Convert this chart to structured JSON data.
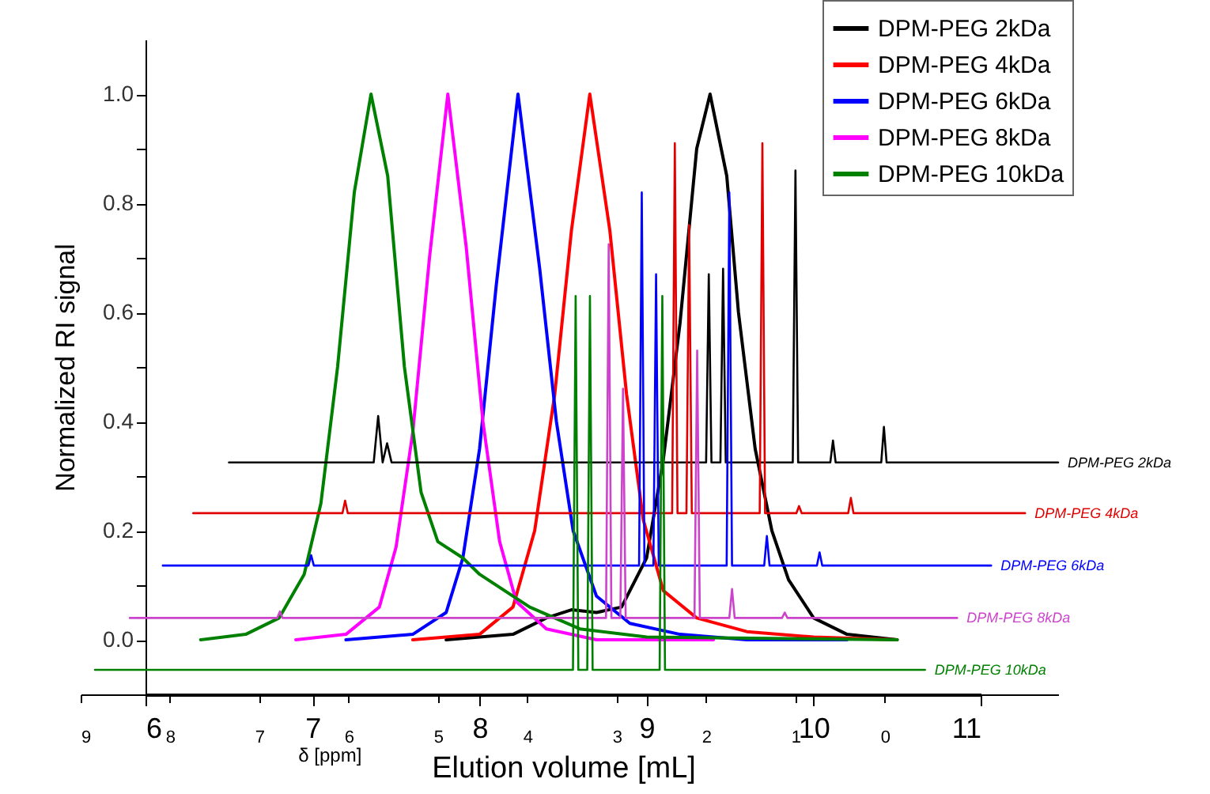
{
  "chart_data": {
    "type": "line",
    "xlabel": "Elution volume [mL]",
    "ylabel": "Normalized RI signal",
    "x2label": "δ [ppm]",
    "xlim": [
      6,
      11
    ],
    "xticks": [
      6,
      7,
      8,
      9,
      10,
      11
    ],
    "x2lim": [
      9,
      -1.94
    ],
    "x2ticks": [
      9,
      8,
      7,
      6,
      5,
      4,
      3,
      2,
      1,
      0
    ],
    "ylim": [
      -0.1,
      1.1
    ],
    "yticks": [
      {
        "value": 0,
        "label": "0.0"
      },
      {
        "value": 0.1,
        "label": null
      },
      {
        "value": 0.2,
        "label": "0.2"
      },
      {
        "value": 0.3,
        "label": null
      },
      {
        "value": 0.4,
        "label": "0.4"
      },
      {
        "value": 0.5,
        "label": null
      },
      {
        "value": 0.6,
        "label": "0.6"
      },
      {
        "value": 0.7,
        "label": null
      },
      {
        "value": 0.8,
        "label": "0.8"
      },
      {
        "value": 0.9,
        "label": null
      },
      {
        "value": 1,
        "label": "1.0"
      }
    ],
    "grid": false,
    "legend": "top right",
    "series": [
      {
        "name": "DPM-PEG 2kDa",
        "color": "#000000",
        "x": [
          7.8,
          8.2,
          8.4,
          8.55,
          8.7,
          8.85,
          9.0,
          9.1,
          9.2,
          9.3,
          9.38,
          9.48,
          9.55,
          9.65,
          9.75,
          9.85,
          10.0,
          10.2,
          10.5
        ],
        "values": [
          0,
          0.01,
          0.04,
          0.055,
          0.05,
          0.06,
          0.15,
          0.33,
          0.58,
          0.9,
          1.0,
          0.85,
          0.6,
          0.35,
          0.2,
          0.11,
          0.04,
          0.01,
          0
        ]
      },
      {
        "name": "DPM-PEG 4kDa",
        "color": "#ff0000",
        "x": [
          7.6,
          8.0,
          8.2,
          8.33,
          8.45,
          8.55,
          8.66,
          8.78,
          8.88,
          8.98,
          9.1,
          9.3,
          9.6,
          10.0,
          10.5
        ],
        "values": [
          0,
          0.01,
          0.06,
          0.2,
          0.45,
          0.75,
          1.0,
          0.75,
          0.45,
          0.22,
          0.09,
          0.04,
          0.015,
          0.005,
          0
        ]
      },
      {
        "name": "DPM-PEG 6kDa",
        "color": "#0000ff",
        "x": [
          7.2,
          7.6,
          7.8,
          7.9,
          8.0,
          8.1,
          8.23,
          8.36,
          8.46,
          8.56,
          8.7,
          8.9,
          9.2,
          9.6,
          10.2
        ],
        "values": [
          0,
          0.01,
          0.05,
          0.15,
          0.35,
          0.65,
          1.0,
          0.68,
          0.4,
          0.2,
          0.08,
          0.03,
          0.01,
          0,
          0
        ]
      },
      {
        "name": "DPM-PEG 8kDa",
        "color": "#ff00ff",
        "x": [
          6.9,
          7.2,
          7.4,
          7.5,
          7.6,
          7.7,
          7.81,
          7.92,
          8.02,
          8.12,
          8.22,
          8.4,
          8.7,
          9.4
        ],
        "values": [
          0,
          0.01,
          0.06,
          0.17,
          0.38,
          0.7,
          1.0,
          0.72,
          0.4,
          0.18,
          0.07,
          0.02,
          0,
          0
        ]
      },
      {
        "name": "DPM-PEG 10kDa",
        "color": "#008000",
        "x": [
          6.33,
          6.6,
          6.8,
          6.95,
          7.05,
          7.15,
          7.25,
          7.35,
          7.45,
          7.55,
          7.65,
          7.75,
          7.9,
          8.0,
          8.3,
          8.6,
          9.0,
          10.5
        ],
        "values": [
          0,
          0.01,
          0.04,
          0.12,
          0.25,
          0.5,
          0.82,
          1.0,
          0.85,
          0.5,
          0.27,
          0.18,
          0.15,
          0.12,
          0.06,
          0.02,
          0.005,
          0
        ]
      },
      {
        "name": "DPM-PEG 2kDa",
        "color": "#000000",
        "axis": "x2",
        "x": [
          7.34,
          5.72,
          5.67,
          5.62,
          5.57,
          5.52,
          2.0,
          1.97,
          1.94,
          1.84,
          1.81,
          1.78,
          1.03,
          1.0,
          0.97,
          0.61,
          0.58,
          0.55,
          0.04,
          0.01,
          -0.02,
          -1.94
        ],
        "values": [
          0.325,
          0.325,
          0.41,
          0.325,
          0.36,
          0.325,
          0.325,
          0.67,
          0.325,
          0.325,
          0.68,
          0.325,
          0.325,
          0.86,
          0.325,
          0.325,
          0.365,
          0.325,
          0.325,
          0.39,
          0.325,
          0.325
        ]
      },
      {
        "name": "DPM-PEG 4kDa",
        "color": "#e00000",
        "axis": "x2",
        "x": [
          7.74,
          6.07,
          6.04,
          6.01,
          2.38,
          2.35,
          2.32,
          2.22,
          2.19,
          2.16,
          1.4,
          1.37,
          1.34,
          0.99,
          0.96,
          0.93,
          0.41,
          0.38,
          0.35,
          -1.57
        ],
        "values": [
          0.232,
          0.232,
          0.255,
          0.232,
          0.232,
          0.91,
          0.232,
          0.232,
          0.76,
          0.232,
          0.232,
          0.91,
          0.232,
          0.232,
          0.245,
          0.232,
          0.232,
          0.26,
          0.232,
          0.232
        ]
      },
      {
        "name": "DPM-PEG 6kDa",
        "color": "#0000ff",
        "axis": "x2",
        "x": [
          8.08,
          6.45,
          6.42,
          6.39,
          2.75,
          2.72,
          2.69,
          2.59,
          2.56,
          2.53,
          1.77,
          1.74,
          1.71,
          1.35,
          1.32,
          1.29,
          0.76,
          0.73,
          0.7,
          -1.19
        ],
        "values": [
          0.136,
          0.136,
          0.155,
          0.136,
          0.136,
          0.82,
          0.136,
          0.136,
          0.67,
          0.136,
          0.136,
          0.82,
          0.136,
          0.136,
          0.19,
          0.136,
          0.136,
          0.16,
          0.136,
          0.136
        ]
      },
      {
        "name": "DPM-PEG 8kDa",
        "color": "#cc44cc",
        "axis": "x2",
        "x": [
          8.45,
          6.8,
          6.77,
          6.74,
          3.12,
          3.09,
          3.06,
          2.96,
          2.93,
          2.9,
          2.13,
          2.1,
          2.07,
          1.74,
          1.71,
          1.68,
          1.15,
          1.12,
          1.09,
          -0.81
        ],
        "values": [
          0.04,
          0.04,
          0.052,
          0.04,
          0.04,
          0.725,
          0.04,
          0.04,
          0.46,
          0.04,
          0.04,
          0.53,
          0.04,
          0.04,
          0.093,
          0.04,
          0.04,
          0.05,
          0.04,
          0.04
        ]
      },
      {
        "name": "DPM-PEG 10kDa",
        "color": "#008000",
        "axis": "x2",
        "x": [
          8.84,
          3.49,
          3.46,
          3.43,
          3.33,
          3.3,
          3.27,
          2.52,
          2.49,
          2.46,
          -0.45
        ],
        "values": [
          -0.055,
          -0.055,
          0.63,
          -0.055,
          -0.055,
          0.63,
          -0.055,
          -0.055,
          0.63,
          -0.055,
          -0.055
        ]
      }
    ]
  }
}
